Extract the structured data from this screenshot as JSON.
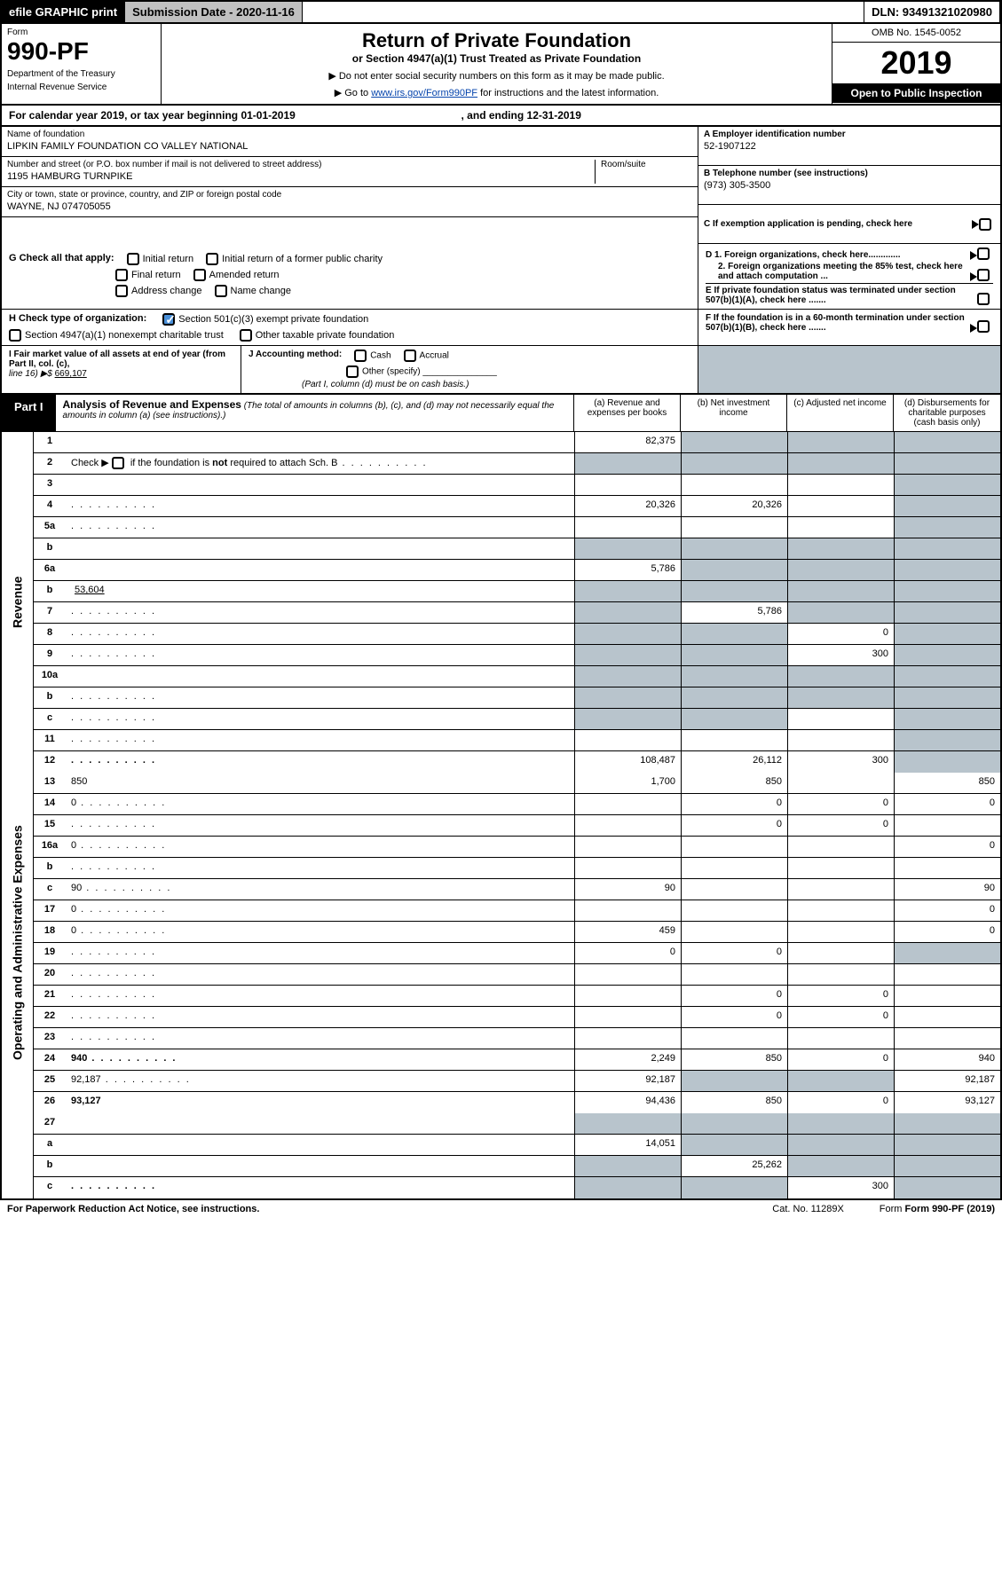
{
  "topbar": {
    "efile": "efile GRAPHIC print",
    "submission": "Submission Date - 2020-11-16",
    "dln": "DLN: 93491321020980"
  },
  "header": {
    "form_label": "Form",
    "form_number": "990-PF",
    "dept1": "Department of the Treasury",
    "dept2": "Internal Revenue Service",
    "title": "Return of Private Foundation",
    "subtitle": "or Section 4947(a)(1) Trust Treated as Private Foundation",
    "note1": "▶ Do not enter social security numbers on this form as it may be made public.",
    "note2_prefix": "▶ Go to ",
    "note2_link": "www.irs.gov/Form990PF",
    "note2_suffix": " for instructions and the latest information.",
    "omb": "OMB No. 1545-0052",
    "year": "2019",
    "inspection": "Open to Public Inspection"
  },
  "calrow": {
    "text": "For calendar year 2019, or tax year beginning 01-01-2019",
    "end": ", and ending 12-31-2019"
  },
  "info": {
    "name_label": "Name of foundation",
    "name": "LIPKIN FAMILY FOUNDATION CO VALLEY NATIONAL",
    "addr_label": "Number and street (or P.O. box number if mail is not delivered to street address)",
    "addr": "1195 HAMBURG TURNPIKE",
    "room_label": "Room/suite",
    "city_label": "City or town, state or province, country, and ZIP or foreign postal code",
    "city": "WAYNE, NJ  074705055",
    "a_label": "A Employer identification number",
    "a_val": "52-1907122",
    "b_label": "B Telephone number (see instructions)",
    "b_val": "(973) 305-3500",
    "c_label": "C If exemption application is pending, check here"
  },
  "boxG": {
    "label": "G Check all that apply:",
    "opts": [
      "Initial return",
      "Initial return of a former public charity",
      "Final return",
      "Amended return",
      "Address change",
      "Name change"
    ],
    "d1": "D 1. Foreign organizations, check here.............",
    "d2": "2. Foreign organizations meeting the 85% test, check here and attach computation ...",
    "e": "E  If private foundation status was terminated under section 507(b)(1)(A), check here ......."
  },
  "boxH": {
    "label": "H Check type of organization:",
    "opt1": "Section 501(c)(3) exempt private foundation",
    "opt2": "Section 4947(a)(1) nonexempt charitable trust",
    "opt3": "Other taxable private foundation",
    "f": "F  If the foundation is in a 60-month termination under section 507(b)(1)(B), check here ......."
  },
  "boxI": {
    "label": "I Fair market value of all assets at end of year (from Part II, col. (c),",
    "line": "line 16) ▶$  ",
    "val": "669,107",
    "j_label": "J Accounting method:",
    "j_cash": "Cash",
    "j_accrual": "Accrual",
    "j_other": "Other (specify)",
    "j_note": "(Part I, column (d) must be on cash basis.)"
  },
  "part1": {
    "label": "Part I",
    "title": "Analysis of Revenue and Expenses",
    "note": "(The total of amounts in columns (b), (c), and (d) may not necessarily equal the amounts in column (a) (see instructions).)",
    "col_a": "(a)     Revenue and expenses per books",
    "col_b": "(b)  Net investment income",
    "col_c": "(c)  Adjusted net income",
    "col_d": "(d)  Disbursements for charitable purposes (cash basis only)"
  },
  "revenue_label": "Revenue",
  "expense_label": "Operating and Administrative Expenses",
  "rows": [
    {
      "n": "1",
      "d": "",
      "a": "82,375",
      "b": "",
      "c": "",
      "sb": true,
      "sc": true,
      "sd": true
    },
    {
      "n": "2",
      "d": "",
      "dots": true,
      "a": "",
      "b": "",
      "c": "",
      "sa": true,
      "sb": true,
      "sc": true,
      "sd": true,
      "html": true
    },
    {
      "n": "3",
      "d": "",
      "a": "",
      "b": "",
      "c": "",
      "sd": true
    },
    {
      "n": "4",
      "d": "",
      "dots": true,
      "a": "20,326",
      "b": "20,326",
      "c": "",
      "sd": true
    },
    {
      "n": "5a",
      "d": "",
      "dots": true,
      "a": "",
      "b": "",
      "c": "",
      "sd": true
    },
    {
      "n": "b",
      "d": "",
      "a": "",
      "b": "",
      "c": "",
      "sa": true,
      "sb": true,
      "sc": true,
      "sd": true
    },
    {
      "n": "6a",
      "d": "",
      "a": "5,786",
      "b": "",
      "c": "",
      "sb": true,
      "sc": true,
      "sd": true
    },
    {
      "n": "b",
      "d": "",
      "val": "53,604",
      "a": "",
      "b": "",
      "c": "",
      "sa": true,
      "sb": true,
      "sc": true,
      "sd": true
    },
    {
      "n": "7",
      "d": "",
      "dots": true,
      "a": "",
      "b": "5,786",
      "c": "",
      "sa": true,
      "sc": true,
      "sd": true
    },
    {
      "n": "8",
      "d": "",
      "dots": true,
      "a": "",
      "b": "",
      "c": "0",
      "sa": true,
      "sb": true,
      "sd": true
    },
    {
      "n": "9",
      "d": "",
      "dots": true,
      "a": "",
      "b": "",
      "c": "300",
      "sa": true,
      "sb": true,
      "sd": true
    },
    {
      "n": "10a",
      "d": "",
      "a": "",
      "b": "",
      "c": "",
      "sa": true,
      "sb": true,
      "sc": true,
      "sd": true
    },
    {
      "n": "b",
      "d": "",
      "dots": true,
      "a": "",
      "b": "",
      "c": "",
      "sa": true,
      "sb": true,
      "sc": true,
      "sd": true
    },
    {
      "n": "c",
      "d": "",
      "dots": true,
      "a": "",
      "b": "",
      "c": "",
      "sa": true,
      "sb": true,
      "sd": true
    },
    {
      "n": "11",
      "d": "",
      "dots": true,
      "a": "",
      "b": "",
      "c": "",
      "sd": true
    },
    {
      "n": "12",
      "d": "",
      "bold": true,
      "dots": true,
      "a": "108,487",
      "b": "26,112",
      "c": "300",
      "sd": true
    }
  ],
  "exp_rows": [
    {
      "n": "13",
      "d": "850",
      "a": "1,700",
      "b": "850",
      "c": ""
    },
    {
      "n": "14",
      "d": "0",
      "dots": true,
      "a": "",
      "b": "0",
      "c": "0"
    },
    {
      "n": "15",
      "d": "",
      "dots": true,
      "a": "",
      "b": "0",
      "c": "0"
    },
    {
      "n": "16a",
      "d": "0",
      "dots": true,
      "a": "",
      "b": "",
      "c": ""
    },
    {
      "n": "b",
      "d": "",
      "dots": true,
      "a": "",
      "b": "",
      "c": ""
    },
    {
      "n": "c",
      "d": "90",
      "dots": true,
      "a": "90",
      "b": "",
      "c": ""
    },
    {
      "n": "17",
      "d": "0",
      "dots": true,
      "a": "",
      "b": "",
      "c": ""
    },
    {
      "n": "18",
      "d": "0",
      "dots": true,
      "a": "459",
      "b": "",
      "c": ""
    },
    {
      "n": "19",
      "d": "",
      "dots": true,
      "a": "0",
      "b": "0",
      "c": "",
      "sd": true
    },
    {
      "n": "20",
      "d": "",
      "dots": true,
      "a": "",
      "b": "",
      "c": ""
    },
    {
      "n": "21",
      "d": "",
      "dots": true,
      "a": "",
      "b": "0",
      "c": "0"
    },
    {
      "n": "22",
      "d": "",
      "dots": true,
      "a": "",
      "b": "0",
      "c": "0"
    },
    {
      "n": "23",
      "d": "",
      "dots": true,
      "a": "",
      "b": "",
      "c": ""
    },
    {
      "n": "24",
      "d": "940",
      "bold": true,
      "dots": true,
      "a": "2,249",
      "b": "850",
      "c": "0"
    },
    {
      "n": "25",
      "d": "92,187",
      "dots": true,
      "a": "92,187",
      "b": "",
      "c": "",
      "sb": true,
      "sc": true
    },
    {
      "n": "26",
      "d": "93,127",
      "bold": true,
      "a": "94,436",
      "b": "850",
      "c": "0"
    }
  ],
  "sub_rows": [
    {
      "n": "27",
      "d": "",
      "a": "",
      "b": "",
      "c": "",
      "sa": true,
      "sb": true,
      "sc": true,
      "sd": true
    },
    {
      "n": "a",
      "d": "",
      "bold": true,
      "a": "14,051",
      "b": "",
      "c": "",
      "sb": true,
      "sc": true,
      "sd": true
    },
    {
      "n": "b",
      "d": "",
      "bold": true,
      "a": "",
      "b": "25,262",
      "c": "",
      "sa": true,
      "sc": true,
      "sd": true
    },
    {
      "n": "c",
      "d": "",
      "bold": true,
      "dots": true,
      "a": "",
      "b": "",
      "c": "300",
      "sa": true,
      "sb": true,
      "sd": true
    }
  ],
  "footer": {
    "left": "For Paperwork Reduction Act Notice, see instructions.",
    "mid": "Cat. No. 11289X",
    "right": "Form 990-PF (2019)"
  }
}
